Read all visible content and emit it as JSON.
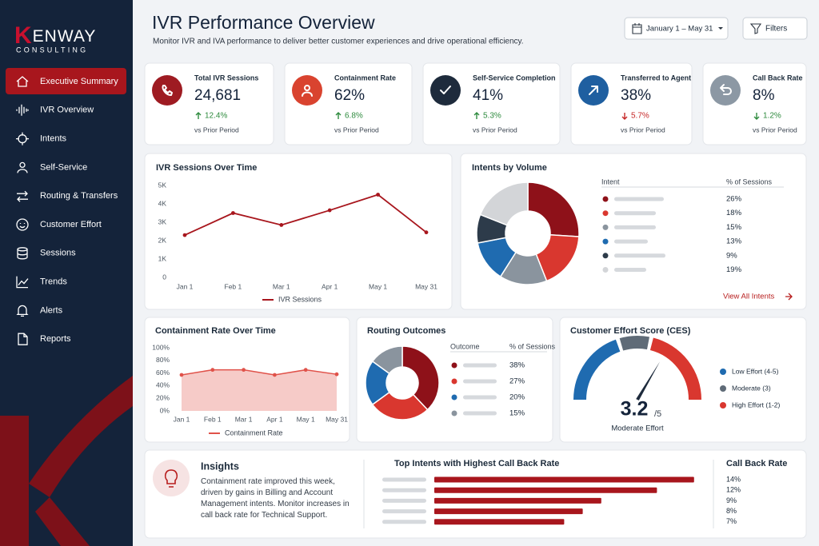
{
  "sidebar": {
    "brand": "KENWAY",
    "tagline": "CONSULTING",
    "nav": [
      "Executive Summary",
      "IVR Overview",
      "Intents",
      "Self-Service",
      "Routing & Transfers",
      "Customer Effort",
      "Sessions",
      "Trends",
      "Alerts",
      "Reports"
    ]
  },
  "header": {
    "title": "IVR Performance Overview",
    "subtitle": "Monitor IVR and IVA performance to deliver better customer experiences and drive operational efficiency.",
    "date_range": "January 1 – May 31",
    "filters": "Filters"
  },
  "kpis": [
    {
      "label": "Total IVR Sessions",
      "value": "24,681",
      "change": "12.4%",
      "trend": "up",
      "change_color": "#2e8b3e",
      "icon_color": "#9e1b22",
      "comparison": "vs Prior Period"
    },
    {
      "label": "Containment Rate",
      "value": "62%",
      "change": "6.8%",
      "trend": "up",
      "change_color": "#2e8b3e",
      "icon_color": "#d9432f",
      "comparison": "vs Prior Period"
    },
    {
      "label": "Self-Service Completion",
      "value": "41%",
      "change": "5.3%",
      "trend": "up",
      "change_color": "#2e8b3e",
      "icon_color": "#1e2b3c",
      "comparison": "vs Prior Period"
    },
    {
      "label": "Transferred to Agent",
      "value": "38%",
      "change": "5.7%",
      "trend": "down",
      "change_color": "#c62828",
      "icon_color": "#1f5fa0",
      "comparison": "vs Prior Period"
    },
    {
      "label": "Call Back Rate",
      "value": "8%",
      "change": "1.2%",
      "trend": "down",
      "change_color": "#2e8b3e",
      "icon_color": "#8c98a4",
      "comparison": "vs Prior Period"
    }
  ],
  "chart_data": [
    {
      "type": "line",
      "title": "IVR Sessions Over Time",
      "categories": [
        "Jan 1",
        "Feb 1",
        "Mar 1",
        "Apr 1",
        "May 1",
        "May 31"
      ],
      "series": [
        {
          "name": "IVR Sessions",
          "color": "#a8161d",
          "values": [
            2300,
            3500,
            2850,
            3650,
            4500,
            2450
          ]
        }
      ],
      "ylim": [
        0,
        5000
      ],
      "yticks": [
        0,
        {
          "value": 1000,
          "label": "1K"
        },
        {
          "value": 2000,
          "label": "2K"
        },
        {
          "value": 3000,
          "label": "3K"
        },
        {
          "value": 4000,
          "label": "4K"
        },
        {
          "value": 5000,
          "label": "5K"
        }
      ]
    },
    {
      "type": "donut",
      "title": "Intents by Volume",
      "columns": [
        "Intent",
        "% of Sessions"
      ],
      "categories": [
        null,
        null,
        null,
        null,
        null,
        null
      ],
      "values": [
        26,
        18,
        15,
        13,
        9,
        19
      ],
      "value_labels": [
        "26%",
        "18%",
        "15%",
        "13%",
        "9%",
        "19%"
      ],
      "colors": [
        "#8e1119",
        "#d9372f",
        "#8a949e",
        "#1f6bb0",
        "#2d3b4a",
        "#d3d5d8"
      ],
      "link": "View All Intents"
    },
    {
      "type": "area",
      "title": "Containment Rate Over Time",
      "categories": [
        "Jan 1",
        "Feb 1",
        "Mar 1",
        "Apr 1",
        "May 1",
        "May 31"
      ],
      "series": [
        {
          "name": "Containment Rate",
          "color": "#e0524a",
          "values": [
            57,
            65,
            65,
            57,
            65,
            58
          ]
        }
      ],
      "ylim": [
        0,
        100
      ],
      "yticks": [
        {
          "value": 0,
          "label": "0%"
        },
        {
          "value": 20,
          "label": "20%"
        },
        {
          "value": 40,
          "label": "40%"
        },
        {
          "value": 60,
          "label": "60%"
        },
        {
          "value": 80,
          "label": "80%"
        },
        {
          "value": 100,
          "label": "100%"
        }
      ]
    },
    {
      "type": "donut",
      "title": "Routing Outcomes",
      "columns": [
        "Outcome",
        "% of Sessions"
      ],
      "categories": [
        null,
        null,
        null,
        null
      ],
      "values": [
        38,
        27,
        20,
        15
      ],
      "value_labels": [
        "38%",
        "27%",
        "20%",
        "15%"
      ],
      "colors": [
        "#8e1119",
        "#d9372f",
        "#1f6bb0",
        "#8a949e"
      ]
    },
    {
      "type": "gauge",
      "title": "Customer Effort Score (CES)",
      "value": 3.2,
      "ylim": [
        0,
        5
      ],
      "max_label": "/5",
      "caption": "Moderate Effort",
      "series": [
        {
          "name": "Low Effort (4-5)",
          "color": "#1f6bb0"
        },
        {
          "name": "Moderate (3)",
          "color": "#5f6b77"
        },
        {
          "name": "High Effort (1-2)",
          "color": "#d9372f"
        }
      ]
    },
    {
      "type": "hbar",
      "title": "Top Intents with Highest Call Back Rate",
      "column": "Call Back Rate",
      "categories": [
        null,
        null,
        null,
        null,
        null
      ],
      "values": [
        14,
        12,
        9,
        8,
        7
      ],
      "value_labels": [
        "14%",
        "12%",
        "9%",
        "8%",
        "7%"
      ],
      "color": "#a8161d",
      "xlim": [
        0,
        15
      ]
    }
  ],
  "insights": {
    "title": "Insights",
    "text": "Containment rate improved this week, driven by gains in Billing and Account Management intents. Monitor increases in call back rate for Technical Support."
  }
}
